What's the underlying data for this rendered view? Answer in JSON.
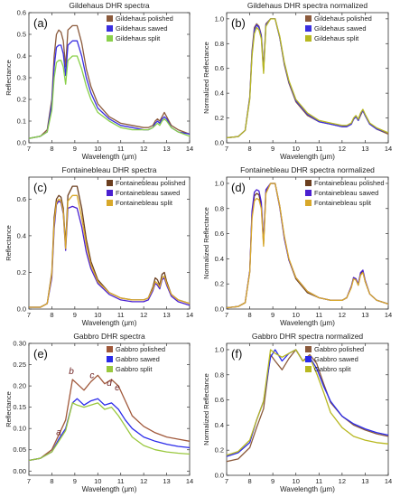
{
  "chart_data": [
    {
      "type": "line",
      "title": "Gildehaus DHR spectra",
      "panel_label": "(a)",
      "xlabel": "Wavelength (μm)",
      "ylabel": "Reflectance",
      "xlim": [
        7,
        14
      ],
      "ylim": [
        0,
        0.6
      ],
      "xticks": [
        7,
        8,
        9,
        10,
        11,
        12,
        13,
        14
      ],
      "yticks": [
        0.0,
        0.1,
        0.2,
        0.3,
        0.4,
        0.5,
        0.6
      ],
      "ytick_labels": [
        "0.0",
        "0.1",
        "0.2",
        "0.3",
        "0.4",
        "0.5",
        "0.6"
      ],
      "legend_position": "top-right",
      "x": [
        7.0,
        7.5,
        7.8,
        8.0,
        8.1,
        8.2,
        8.3,
        8.4,
        8.5,
        8.6,
        8.7,
        8.9,
        9.1,
        9.3,
        9.5,
        9.7,
        10.0,
        10.5,
        11.0,
        11.5,
        12.0,
        12.2,
        12.4,
        12.5,
        12.6,
        12.7,
        12.8,
        12.9,
        13.0,
        13.2,
        13.5,
        14.0
      ],
      "series": [
        {
          "name": "Gildehaus polished",
          "color": "#8b5a3c",
          "values": [
            0.02,
            0.03,
            0.06,
            0.2,
            0.4,
            0.5,
            0.52,
            0.51,
            0.47,
            0.35,
            0.52,
            0.54,
            0.54,
            0.46,
            0.34,
            0.26,
            0.18,
            0.12,
            0.09,
            0.08,
            0.07,
            0.07,
            0.08,
            0.1,
            0.11,
            0.1,
            0.12,
            0.14,
            0.12,
            0.08,
            0.06,
            0.04
          ]
        },
        {
          "name": "Gildehaus sawed",
          "color": "#3a2ee0",
          "values": [
            0.02,
            0.03,
            0.05,
            0.18,
            0.35,
            0.44,
            0.45,
            0.45,
            0.41,
            0.31,
            0.45,
            0.47,
            0.47,
            0.4,
            0.3,
            0.23,
            0.16,
            0.11,
            0.08,
            0.07,
            0.06,
            0.06,
            0.07,
            0.09,
            0.1,
            0.09,
            0.11,
            0.12,
            0.11,
            0.07,
            0.05,
            0.04
          ]
        },
        {
          "name": "Gildehaus split",
          "color": "#8ad04a",
          "values": [
            0.02,
            0.03,
            0.05,
            0.15,
            0.3,
            0.37,
            0.38,
            0.38,
            0.35,
            0.27,
            0.38,
            0.4,
            0.4,
            0.34,
            0.26,
            0.2,
            0.14,
            0.1,
            0.07,
            0.06,
            0.06,
            0.06,
            0.07,
            0.08,
            0.09,
            0.08,
            0.1,
            0.11,
            0.1,
            0.07,
            0.05,
            0.03
          ]
        }
      ]
    },
    {
      "type": "line",
      "title": "Gildehaus DHR spectra normalized",
      "panel_label": "(b)",
      "xlabel": "Wavelength (μm)",
      "ylabel": "Normalized Reflectance",
      "xlim": [
        7,
        14
      ],
      "ylim": [
        0,
        1.05
      ],
      "xticks": [
        7,
        8,
        9,
        10,
        11,
        12,
        13,
        14
      ],
      "yticks": [
        0.0,
        0.2,
        0.4,
        0.6,
        0.8,
        1.0
      ],
      "ytick_labels": [
        "0.0",
        "0.2",
        "0.4",
        "0.6",
        "0.8",
        "1.0"
      ],
      "legend_position": "top-right",
      "x": [
        7.0,
        7.5,
        7.8,
        8.0,
        8.1,
        8.2,
        8.3,
        8.4,
        8.5,
        8.6,
        8.7,
        8.9,
        9.1,
        9.3,
        9.5,
        9.7,
        10.0,
        10.5,
        11.0,
        11.5,
        12.0,
        12.2,
        12.4,
        12.5,
        12.6,
        12.7,
        12.8,
        12.9,
        13.0,
        13.2,
        13.5,
        14.0
      ],
      "series": [
        {
          "name": "Gildehaus polished",
          "color": "#8b5a3c",
          "values": [
            0.04,
            0.05,
            0.1,
            0.37,
            0.74,
            0.93,
            0.96,
            0.94,
            0.87,
            0.6,
            0.96,
            1.0,
            1.0,
            0.85,
            0.63,
            0.48,
            0.33,
            0.22,
            0.17,
            0.15,
            0.13,
            0.13,
            0.15,
            0.19,
            0.21,
            0.18,
            0.22,
            0.26,
            0.22,
            0.15,
            0.11,
            0.07
          ]
        },
        {
          "name": "Gildehaus sawed",
          "color": "#3a2ee0",
          "values": [
            0.04,
            0.05,
            0.1,
            0.36,
            0.72,
            0.91,
            0.95,
            0.93,
            0.86,
            0.58,
            0.95,
            1.0,
            1.0,
            0.85,
            0.64,
            0.49,
            0.34,
            0.23,
            0.17,
            0.15,
            0.13,
            0.13,
            0.15,
            0.19,
            0.21,
            0.18,
            0.23,
            0.26,
            0.22,
            0.15,
            0.11,
            0.08
          ]
        },
        {
          "name": "Gildehaus split",
          "color": "#b8b820",
          "values": [
            0.04,
            0.05,
            0.1,
            0.35,
            0.7,
            0.88,
            0.93,
            0.91,
            0.84,
            0.56,
            0.94,
            1.0,
            1.0,
            0.86,
            0.65,
            0.5,
            0.35,
            0.24,
            0.18,
            0.16,
            0.14,
            0.14,
            0.16,
            0.2,
            0.22,
            0.19,
            0.24,
            0.27,
            0.23,
            0.16,
            0.12,
            0.08
          ]
        }
      ]
    },
    {
      "type": "line",
      "title": "Fontainebleau DHR spectra",
      "panel_label": "(c)",
      "xlabel": "Wavelength (μm)",
      "ylabel": "Reflectance",
      "xlim": [
        7,
        14
      ],
      "ylim": [
        0,
        0.72
      ],
      "xticks": [
        7,
        8,
        9,
        10,
        11,
        12,
        13,
        14
      ],
      "yticks": [
        0.0,
        0.2,
        0.4,
        0.6
      ],
      "ytick_labels": [
        "0.0",
        "0.2",
        "0.4",
        "0.6"
      ],
      "legend_position": "top-right",
      "x": [
        7.0,
        7.5,
        7.8,
        8.0,
        8.1,
        8.2,
        8.3,
        8.4,
        8.5,
        8.6,
        8.7,
        8.9,
        9.1,
        9.3,
        9.5,
        9.7,
        10.0,
        10.5,
        11.0,
        11.5,
        12.0,
        12.2,
        12.4,
        12.5,
        12.6,
        12.7,
        12.8,
        12.9,
        13.0,
        13.2,
        13.5,
        14.0
      ],
      "series": [
        {
          "name": "Fontainebleau polished",
          "color": "#6b3e1f",
          "values": [
            0.01,
            0.01,
            0.03,
            0.2,
            0.5,
            0.6,
            0.62,
            0.61,
            0.55,
            0.35,
            0.62,
            0.67,
            0.67,
            0.55,
            0.38,
            0.26,
            0.16,
            0.09,
            0.06,
            0.05,
            0.05,
            0.06,
            0.12,
            0.17,
            0.16,
            0.13,
            0.19,
            0.2,
            0.15,
            0.08,
            0.05,
            0.03
          ]
        },
        {
          "name": "Fontainebleau sawed",
          "color": "#4a20d0",
          "values": [
            0.01,
            0.01,
            0.03,
            0.17,
            0.44,
            0.57,
            0.59,
            0.58,
            0.52,
            0.32,
            0.55,
            0.56,
            0.55,
            0.45,
            0.31,
            0.22,
            0.14,
            0.08,
            0.05,
            0.04,
            0.04,
            0.05,
            0.1,
            0.14,
            0.13,
            0.11,
            0.16,
            0.17,
            0.13,
            0.07,
            0.04,
            0.02
          ]
        },
        {
          "name": "Fontainebleau split",
          "color": "#d8a82a",
          "values": [
            0.01,
            0.01,
            0.03,
            0.19,
            0.47,
            0.58,
            0.6,
            0.59,
            0.53,
            0.33,
            0.59,
            0.62,
            0.62,
            0.5,
            0.35,
            0.24,
            0.15,
            0.09,
            0.06,
            0.05,
            0.05,
            0.06,
            0.11,
            0.15,
            0.14,
            0.12,
            0.17,
            0.18,
            0.14,
            0.08,
            0.05,
            0.03
          ]
        }
      ]
    },
    {
      "type": "line",
      "title": "Fontainebleau DHR spectra normalized",
      "panel_label": "(d)",
      "xlabel": "Wavelength (μm)",
      "ylabel": "Normalized Reflectance",
      "xlim": [
        7,
        14
      ],
      "ylim": [
        0,
        1.05
      ],
      "xticks": [
        7,
        8,
        9,
        10,
        11,
        12,
        13,
        14
      ],
      "yticks": [
        0.0,
        0.2,
        0.4,
        0.6,
        0.8,
        1.0
      ],
      "ytick_labels": [
        "0.0",
        "0.2",
        "0.4",
        "0.6",
        "0.8",
        "1.0"
      ],
      "legend_position": "top-right",
      "x": [
        7.0,
        7.5,
        7.8,
        8.0,
        8.1,
        8.2,
        8.3,
        8.4,
        8.5,
        8.6,
        8.7,
        8.9,
        9.1,
        9.3,
        9.5,
        9.7,
        10.0,
        10.5,
        11.0,
        11.5,
        12.0,
        12.2,
        12.4,
        12.5,
        12.6,
        12.7,
        12.8,
        12.9,
        13.0,
        13.2,
        13.5,
        14.0
      ],
      "series": [
        {
          "name": "Fontainebleau polished",
          "color": "#6b3e1f",
          "values": [
            0.01,
            0.02,
            0.05,
            0.3,
            0.75,
            0.9,
            0.92,
            0.91,
            0.82,
            0.52,
            0.93,
            1.0,
            1.0,
            0.82,
            0.57,
            0.39,
            0.24,
            0.13,
            0.09,
            0.07,
            0.07,
            0.09,
            0.18,
            0.25,
            0.24,
            0.19,
            0.28,
            0.3,
            0.22,
            0.12,
            0.07,
            0.04
          ]
        },
        {
          "name": "Fontainebleau sawed",
          "color": "#4a20d0",
          "values": [
            0.01,
            0.02,
            0.05,
            0.3,
            0.78,
            0.93,
            0.95,
            0.94,
            0.85,
            0.54,
            0.95,
            1.0,
            1.0,
            0.81,
            0.56,
            0.39,
            0.25,
            0.14,
            0.09,
            0.07,
            0.07,
            0.09,
            0.18,
            0.25,
            0.24,
            0.2,
            0.29,
            0.31,
            0.23,
            0.12,
            0.07,
            0.04
          ]
        },
        {
          "name": "Fontainebleau split",
          "color": "#d8a82a",
          "values": [
            0.01,
            0.02,
            0.05,
            0.29,
            0.72,
            0.86,
            0.88,
            0.87,
            0.8,
            0.5,
            0.92,
            1.0,
            1.0,
            0.82,
            0.58,
            0.4,
            0.25,
            0.14,
            0.09,
            0.07,
            0.07,
            0.09,
            0.17,
            0.24,
            0.23,
            0.19,
            0.27,
            0.29,
            0.22,
            0.12,
            0.07,
            0.04
          ]
        }
      ]
    },
    {
      "type": "line",
      "title": "Gabbro DHR spectra",
      "panel_label": "(e)",
      "xlabel": "Wavelength (μm)",
      "ylabel": "Reflectance",
      "xlim": [
        7,
        14
      ],
      "ylim": [
        -0.01,
        0.3
      ],
      "xticks": [
        7,
        8,
        9,
        10,
        11,
        12,
        13,
        14
      ],
      "yticks": [
        0.0,
        0.05,
        0.1,
        0.15,
        0.2,
        0.25,
        0.3
      ],
      "ytick_labels": [
        "0.00",
        "0.05",
        "0.10",
        "0.15",
        "0.20",
        "0.25",
        "0.30"
      ],
      "legend_position": "top-right",
      "annotations": [
        "a",
        "b",
        "c",
        "d",
        "e"
      ],
      "x": [
        7.0,
        7.5,
        8.0,
        8.3,
        8.6,
        8.9,
        9.1,
        9.4,
        9.7,
        10.0,
        10.3,
        10.6,
        10.9,
        11.2,
        11.5,
        12.0,
        12.5,
        13.0,
        13.5,
        14.0
      ],
      "series": [
        {
          "name": "Gabbro polished",
          "color": "#a0583a",
          "values": [
            0.025,
            0.03,
            0.05,
            0.085,
            0.12,
            0.215,
            0.205,
            0.19,
            0.21,
            0.225,
            0.205,
            0.215,
            0.2,
            0.165,
            0.13,
            0.105,
            0.09,
            0.08,
            0.075,
            0.07
          ]
        },
        {
          "name": "Gabbro sawed",
          "color": "#2a2aea",
          "values": [
            0.025,
            0.03,
            0.045,
            0.075,
            0.1,
            0.16,
            0.17,
            0.155,
            0.165,
            0.17,
            0.155,
            0.16,
            0.145,
            0.12,
            0.1,
            0.08,
            0.07,
            0.063,
            0.058,
            0.055
          ]
        },
        {
          "name": "Gabbro split",
          "color": "#9ac83e",
          "values": [
            0.025,
            0.03,
            0.045,
            0.07,
            0.095,
            0.16,
            0.155,
            0.15,
            0.155,
            0.16,
            0.145,
            0.15,
            0.13,
            0.105,
            0.08,
            0.06,
            0.05,
            0.045,
            0.042,
            0.04
          ]
        }
      ]
    },
    {
      "type": "line",
      "title": "Gabbro DHR spectra normalized",
      "panel_label": "(f)",
      "xlabel": "Wavelength (μm)",
      "ylabel": "Normalized Reflectance",
      "xlim": [
        7,
        14
      ],
      "ylim": [
        0,
        1.05
      ],
      "xticks": [
        7,
        8,
        9,
        10,
        11,
        12,
        13,
        14
      ],
      "yticks": [
        0.0,
        0.2,
        0.4,
        0.6,
        0.8,
        1.0
      ],
      "ytick_labels": [
        "0.0",
        "0.2",
        "0.4",
        "0.6",
        "0.8",
        "1.0"
      ],
      "legend_position": "top-right",
      "x": [
        7.0,
        7.5,
        8.0,
        8.3,
        8.6,
        8.9,
        9.1,
        9.4,
        9.7,
        10.0,
        10.3,
        10.6,
        10.9,
        11.2,
        11.5,
        12.0,
        12.5,
        13.0,
        13.5,
        14.0
      ],
      "series": [
        {
          "name": "Gabbro polished",
          "color": "#8b5a3c",
          "values": [
            0.11,
            0.13,
            0.22,
            0.38,
            0.53,
            0.96,
            0.91,
            0.84,
            0.93,
            1.0,
            0.91,
            0.96,
            0.89,
            0.73,
            0.58,
            0.47,
            0.4,
            0.36,
            0.33,
            0.31
          ]
        },
        {
          "name": "Gabbro sawed",
          "color": "#2a2aea",
          "values": [
            0.15,
            0.18,
            0.26,
            0.44,
            0.59,
            0.94,
            1.0,
            0.91,
            0.97,
            1.0,
            0.91,
            0.94,
            0.85,
            0.71,
            0.59,
            0.47,
            0.41,
            0.37,
            0.34,
            0.32
          ]
        },
        {
          "name": "Gabbro split",
          "color": "#b8b820",
          "values": [
            0.16,
            0.19,
            0.28,
            0.44,
            0.59,
            1.0,
            0.97,
            0.94,
            0.97,
            1.0,
            0.91,
            0.94,
            0.81,
            0.66,
            0.5,
            0.38,
            0.31,
            0.28,
            0.26,
            0.25
          ]
        }
      ]
    }
  ]
}
